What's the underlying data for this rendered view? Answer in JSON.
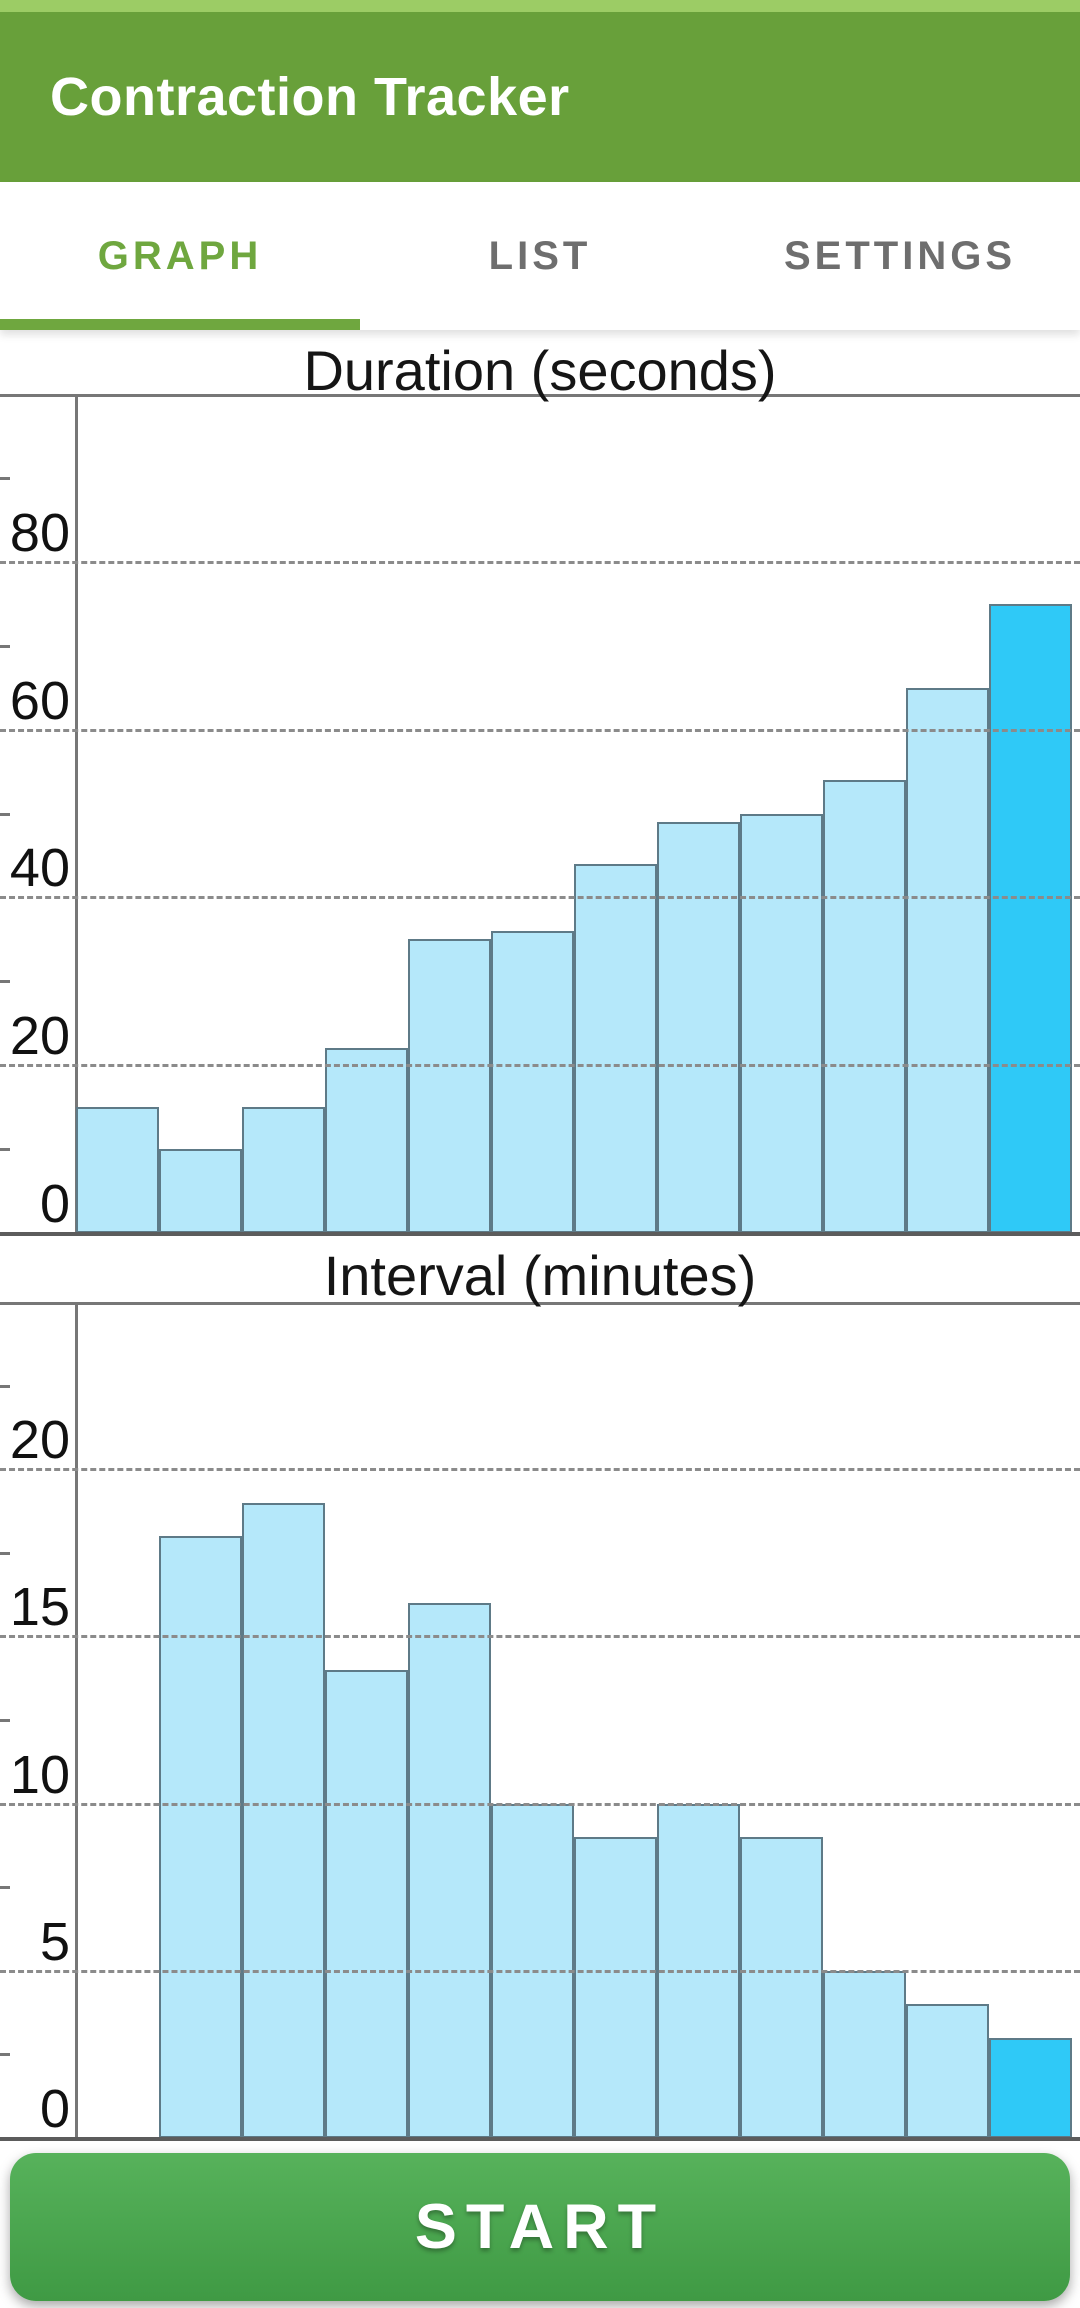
{
  "app": {
    "title": "Contraction Tracker"
  },
  "tabs": [
    {
      "label": "GRAPH",
      "selected": true
    },
    {
      "label": "LIST",
      "selected": false
    },
    {
      "label": "SETTINGS",
      "selected": false
    }
  ],
  "action_button": {
    "label": "START"
  },
  "colors": {
    "status_bar": "#9CCC65",
    "app_bar": "#68A03A",
    "tab_selected": "#6FA73F",
    "tab_unselected": "#6E6E6E",
    "tab_indicator": "#6FA73F",
    "bar_fill": "#B5E8FA",
    "bar_highlight": "#2FC9F7",
    "bar_stroke": "#5E7A87",
    "grid_line": "#8B8B8B",
    "axis_line": "#777777",
    "baseline": "#5C5C5C",
    "button_top": "#57B25B",
    "button_bottom": "#3F9A44",
    "title_text": "#151515"
  },
  "chart_data": [
    {
      "type": "bar",
      "title": "Duration (seconds)",
      "ylim": [
        0,
        100
      ],
      "yticks": [
        80,
        60,
        40,
        20,
        0
      ],
      "grid": "dashed-horizontal",
      "legend": "none",
      "values": [
        15,
        10,
        15,
        22,
        35,
        36,
        44,
        49,
        50,
        54,
        65,
        75
      ],
      "highlight_index": 11
    },
    {
      "type": "bar",
      "title": "Interval (minutes)",
      "ylim": [
        0,
        25
      ],
      "yticks": [
        20,
        15,
        10,
        5,
        0
      ],
      "grid": "dashed-horizontal",
      "legend": "none",
      "values": [
        null,
        18,
        19,
        14,
        16,
        10,
        9,
        10,
        9,
        5,
        4,
        3
      ],
      "highlight_index": 11
    }
  ]
}
